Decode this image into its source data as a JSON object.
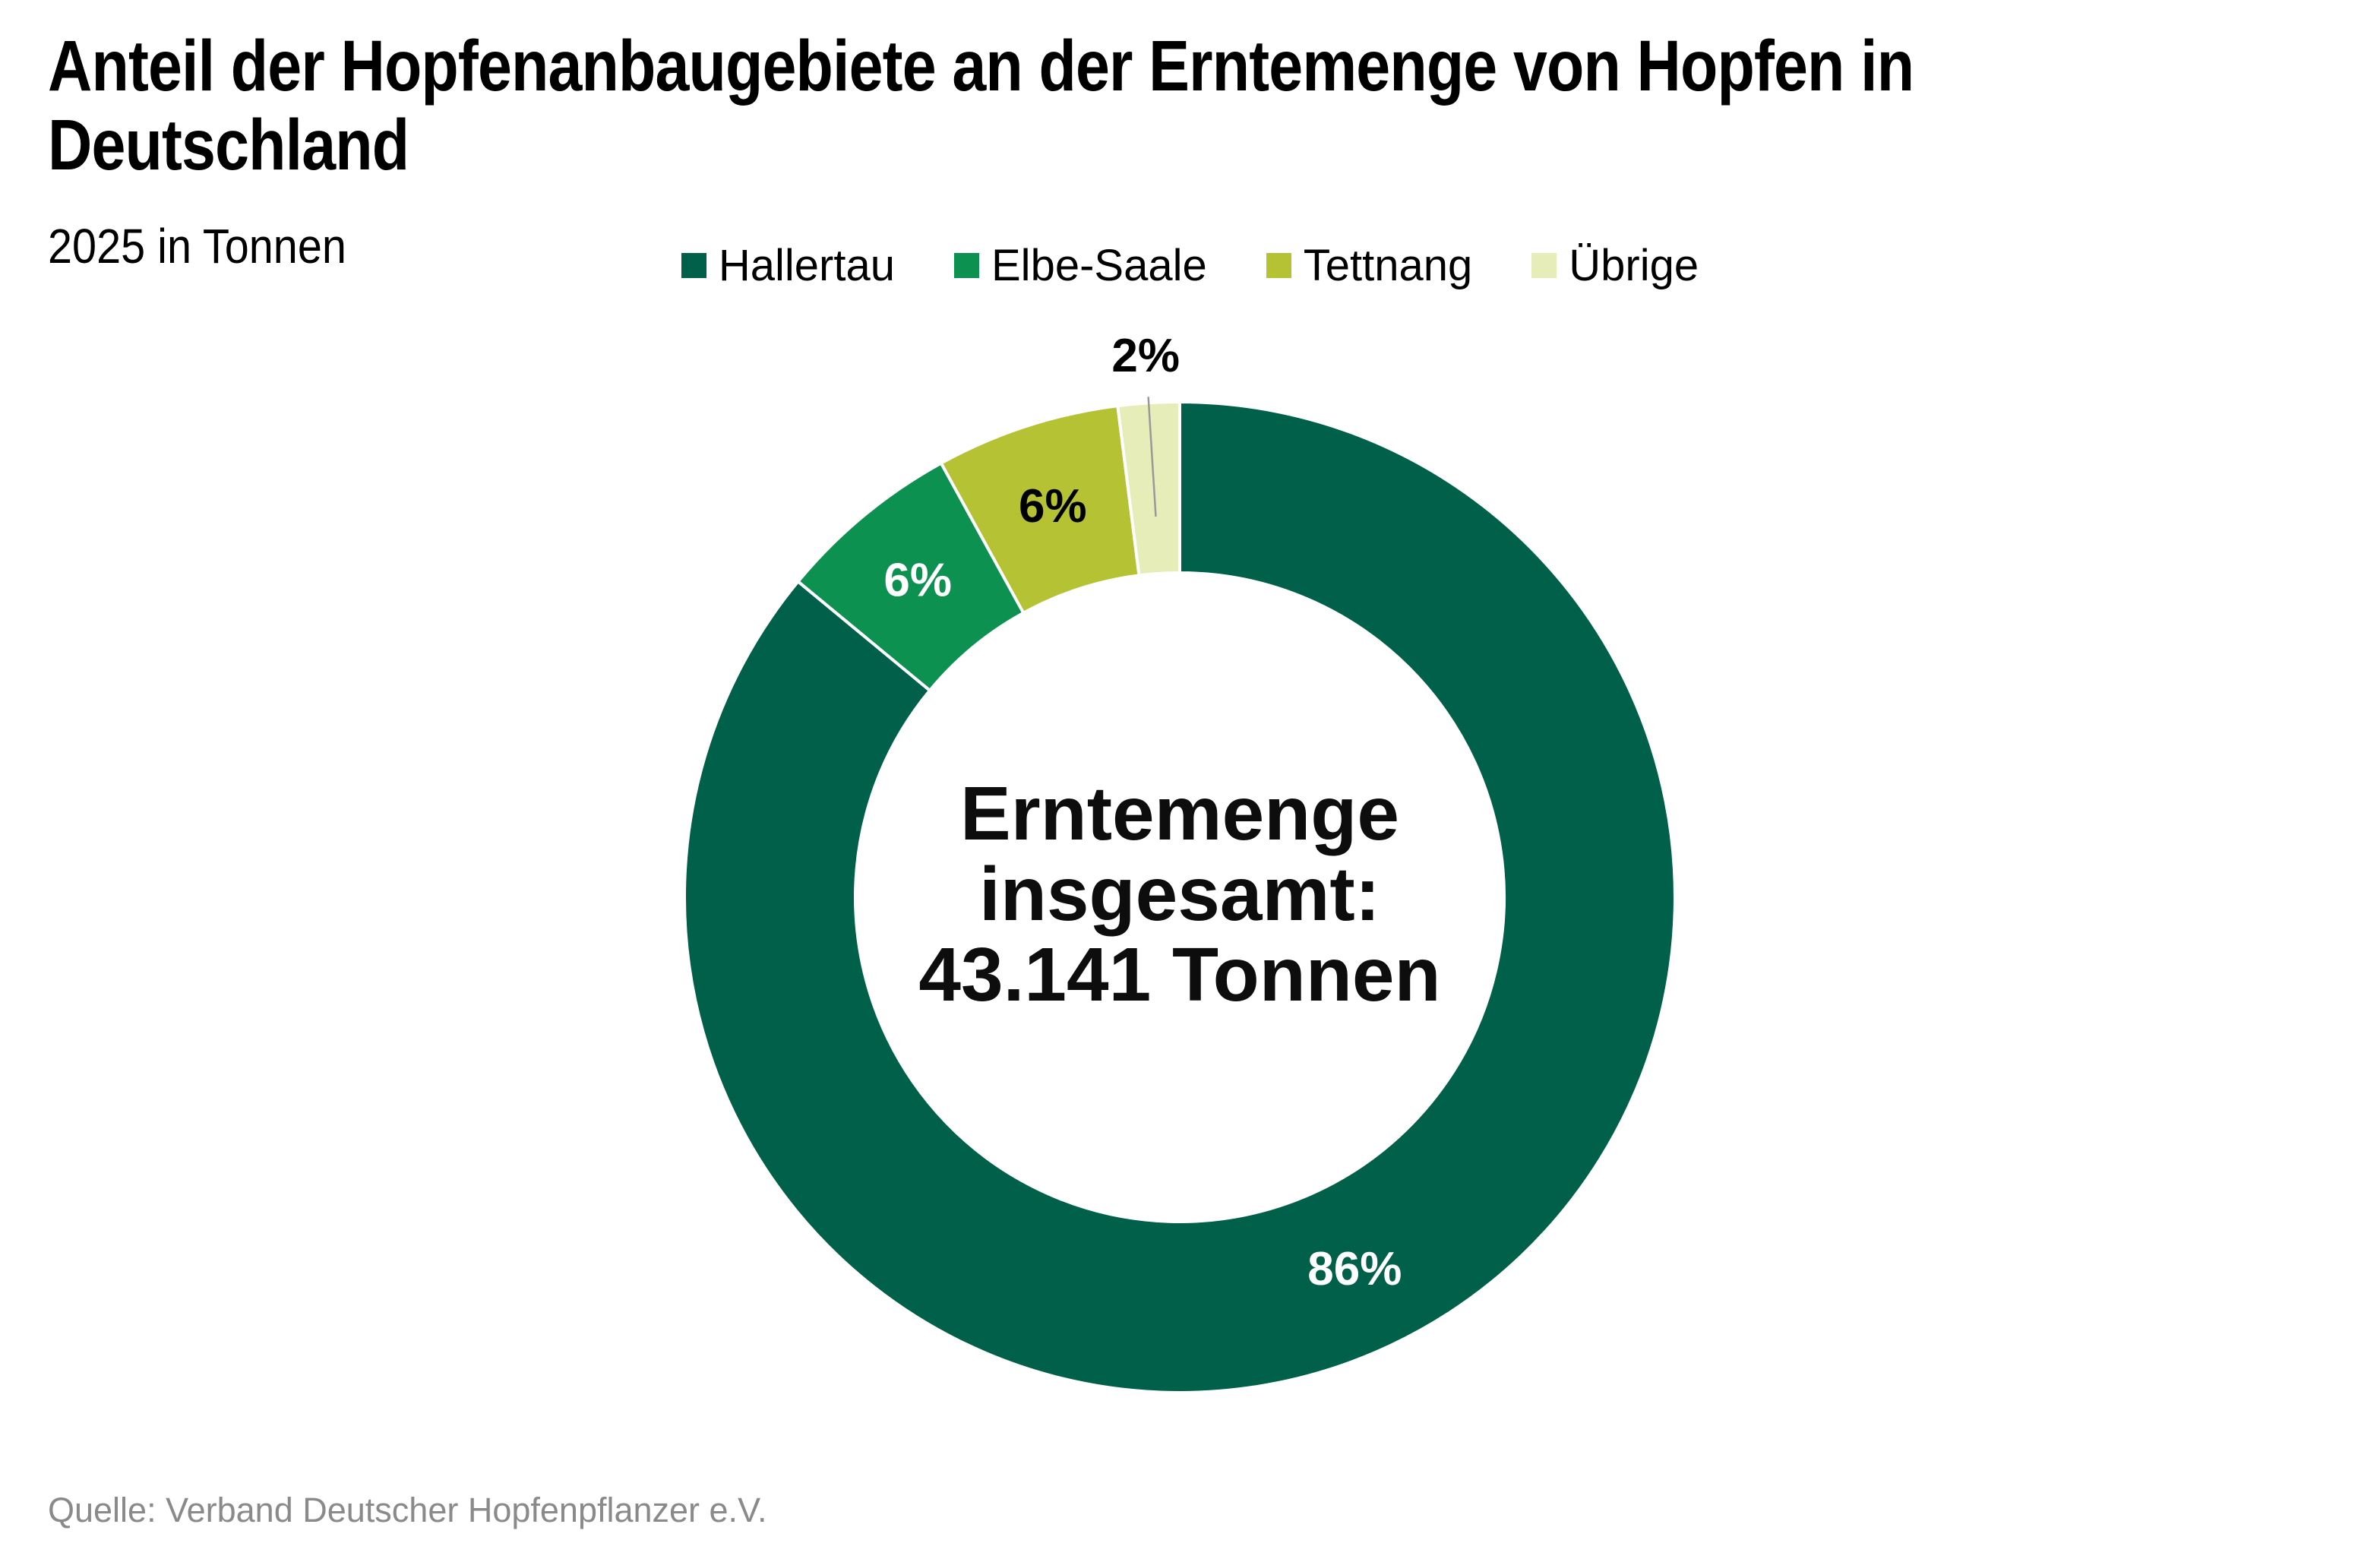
{
  "header": {
    "title": "Anteil der Hopfenanbaugebiete an der Erntemenge von Hopfen in Deutschland",
    "subtitle": "2025 in Tonnen"
  },
  "source": {
    "text": "Quelle: Verband Deutscher Hopfenpflanzer e.V.",
    "color": "#8a8a8a"
  },
  "chart_data": {
    "type": "pie",
    "donut": true,
    "title": "Anteil der Hopfenanbaugebiete an der Erntemenge von Hopfen in Deutschland",
    "subtitle": "2025 in Tonnen",
    "legend_position": "top",
    "start_angle_deg": 0,
    "clockwise": true,
    "center_label_lines": [
      "Erntemenge",
      "insgesamt:",
      "43.141 Tonnen"
    ],
    "total_display": "43.141 Tonnen",
    "leader_line_color": "#999999",
    "slice_border_color": "#ffffff",
    "slices": [
      {
        "name": "Hallertau",
        "value_pct": 86,
        "label": "86%",
        "color": "#006049",
        "label_color": "#ffffff",
        "label_outside": false
      },
      {
        "name": "Elbe-Saale",
        "value_pct": 6,
        "label": "6%",
        "color": "#0d9150",
        "label_color": "#ffffff",
        "label_outside": false
      },
      {
        "name": "Tettnang",
        "value_pct": 6,
        "label": "6%",
        "color": "#b4c234",
        "label_color": "#000000",
        "label_outside": false
      },
      {
        "name": "Übrige",
        "value_pct": 2,
        "label": "2%",
        "color": "#e6edb8",
        "label_color": "#000000",
        "label_outside": true
      }
    ]
  }
}
